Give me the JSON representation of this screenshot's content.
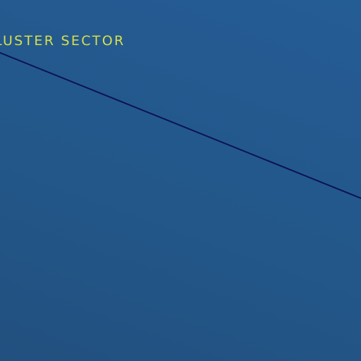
{
  "map": {
    "sector_label": "LUSTER SECTOR",
    "colors": {
      "background": "#23578a",
      "label": "#d7df4e",
      "route_line": "#0c1258"
    }
  }
}
